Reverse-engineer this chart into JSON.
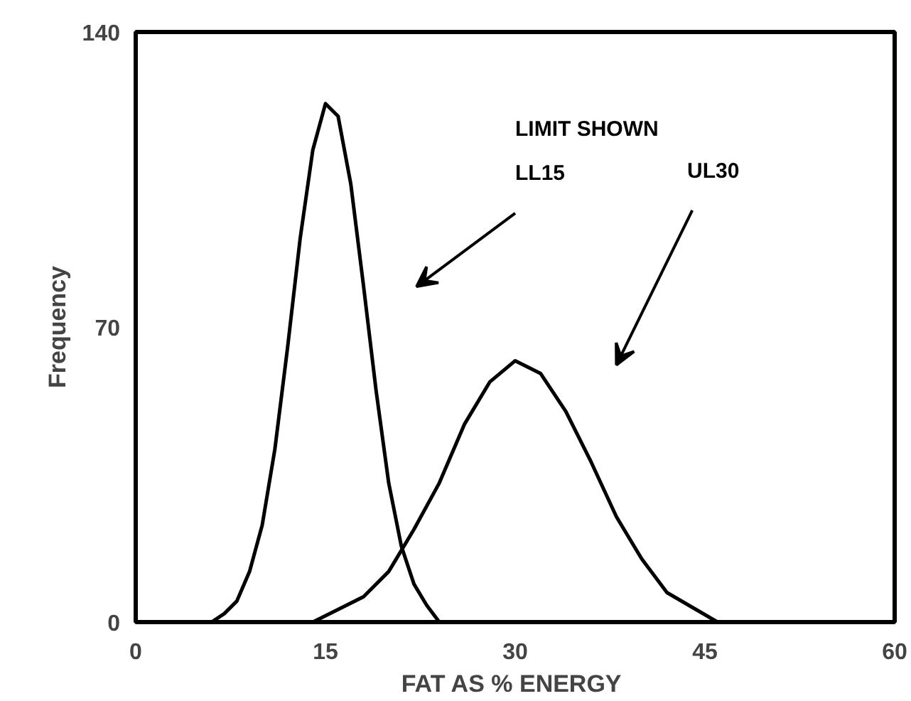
{
  "chart_data": {
    "type": "line",
    "xlabel": "FAT  AS % ENERGY",
    "ylabel": "Frequency",
    "xlim": [
      0,
      60
    ],
    "ylim": [
      0,
      140
    ],
    "xticks": [
      0,
      15,
      30,
      45,
      60
    ],
    "yticks": [
      0,
      70,
      140
    ],
    "grid": false,
    "marker": "none",
    "line_style": "solid",
    "series": [
      {
        "color": "#000000",
        "x": [
          6,
          7,
          8,
          9,
          10,
          11,
          12,
          13,
          14,
          15,
          16,
          17,
          18,
          19,
          20,
          21,
          22,
          23,
          24
        ],
        "values": [
          0,
          2,
          5,
          12,
          23,
          41,
          65,
          91,
          112,
          123,
          120,
          104,
          80,
          55,
          33,
          18,
          9,
          4,
          0
        ]
      },
      {
        "color": "#000000",
        "x": [
          14,
          16,
          18,
          20,
          22,
          24,
          26,
          28,
          30,
          32,
          34,
          36,
          38,
          40,
          42,
          44,
          46
        ],
        "values": [
          0,
          3,
          6,
          12,
          22,
          33,
          47,
          57,
          62,
          59,
          50,
          38,
          25,
          15,
          7,
          3.5,
          0
        ]
      }
    ],
    "annotations": [
      "LIMIT SHOWN",
      "LL15",
      "UL30"
    ]
  }
}
